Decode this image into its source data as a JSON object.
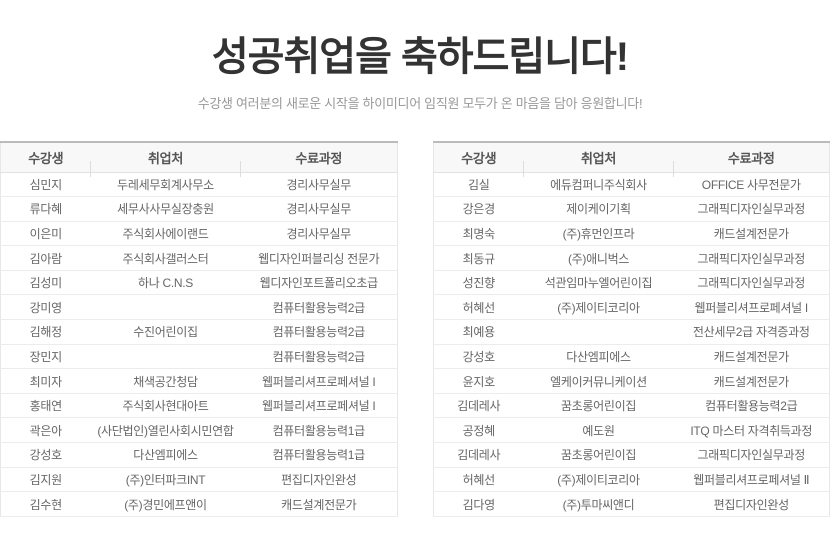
{
  "page": {
    "title": "성공취업을 축하드립니다!",
    "subtitle": "수강생 여러분의 새로운 시작을 하이미디어 임직원 모두가 온 마음을 담아 응원합니다!"
  },
  "colors": {
    "title_text": "#333333",
    "subtitle_text": "#999999",
    "table_header_bg": "#f8f8f8",
    "table_header_top_border": "#bbbbbb",
    "row_border": "#ececec",
    "cell_text": "#666666"
  },
  "tables": [
    {
      "columns": [
        "수강생",
        "취업처",
        "수료과정"
      ],
      "rows": [
        [
          "심민지",
          "두레세무회계사무소",
          "경리사무실무"
        ],
        [
          "류다혜",
          "세무사사무실장충원",
          "경리사무실무"
        ],
        [
          "이은미",
          "주식회사에이랜드",
          "경리사무실무"
        ],
        [
          "김아람",
          "주식회사갤러스터",
          "웹디자인퍼블리싱 전문가"
        ],
        [
          "김성미",
          "하나 C.N.S",
          "웹디자인포트폴리오초급"
        ],
        [
          "강미영",
          "",
          "컴퓨터활용능력2급"
        ],
        [
          "김해정",
          "수진어린이집",
          "컴퓨터활용능력2급"
        ],
        [
          "장민지",
          "",
          "컴퓨터활용능력2급"
        ],
        [
          "최미자",
          "채색공간청담",
          "웹퍼블리셔프로페셔널 I"
        ],
        [
          "홍태연",
          "주식회사현대아트",
          "웹퍼블리셔프로페셔널 I"
        ],
        [
          "곽은아",
          "(사단법인)열린사회시민연합",
          "컴퓨터활용능력1급"
        ],
        [
          "강성호",
          "다산엠피에스",
          "컴퓨터활용능력1급"
        ],
        [
          "김지원",
          "(주)인터파크INT",
          "편집디자인완성"
        ],
        [
          "김수현",
          "(주)경민에프앤이",
          "캐드설계전문가"
        ]
      ]
    },
    {
      "columns": [
        "수강생",
        "취업처",
        "수료과정"
      ],
      "rows": [
        [
          "김실",
          "에듀컴퍼니주식회사",
          "OFFICE 사무전문가"
        ],
        [
          "강은경",
          "제이케이기획",
          "그래픽디자인실무과정"
        ],
        [
          "최명숙",
          "(주)휴먼인프라",
          "캐드설계전문가"
        ],
        [
          "최동규",
          "(주)애니벅스",
          "그래픽디자인실무과정"
        ],
        [
          "성진향",
          "석관임마누엘어린이집",
          "그래픽디자인실무과정"
        ],
        [
          "허혜선",
          "(주)제이티코리아",
          "웹퍼블리셔프로페셔널 I"
        ],
        [
          "최예용",
          "",
          "전산세무2급 자격증과정"
        ],
        [
          "강성호",
          "다산엠피에스",
          "캐드설계전문가"
        ],
        [
          "윤지호",
          "엘케이커뮤니케이션",
          "캐드설계전문가"
        ],
        [
          "김데레사",
          "꿈초롱어린이집",
          "컴퓨터활용능력2급"
        ],
        [
          "공정혜",
          "예도원",
          "ITQ 마스터 자격취득과정"
        ],
        [
          "김데레사",
          "꿈초롱어린이집",
          "그래픽디자인실무과정"
        ],
        [
          "허혜선",
          "(주)제이티코리아",
          "웹퍼블리셔프로페셔널 Ⅱ"
        ],
        [
          "김다영",
          "(주)투마씨앤디",
          "편집디자인완성"
        ]
      ]
    }
  ]
}
